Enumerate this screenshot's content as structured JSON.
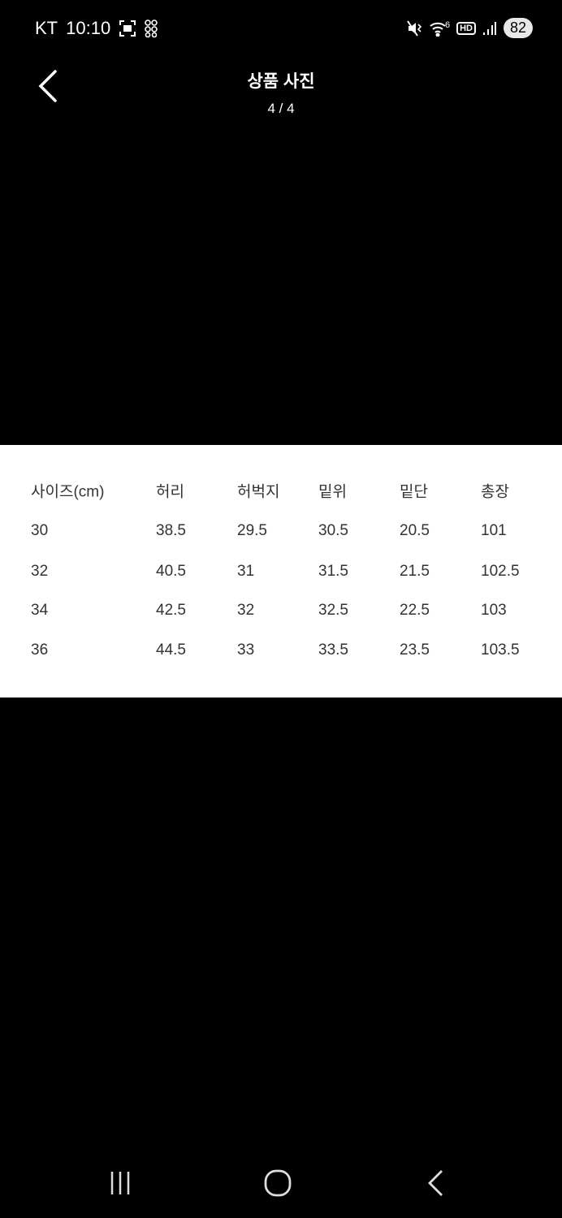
{
  "status_bar": {
    "carrier": "KT",
    "time": "10:10",
    "battery": "82",
    "network": "6",
    "hd": "HD"
  },
  "header": {
    "title": "상품 사진",
    "counter": "4 / 4"
  },
  "size_table": {
    "headers": [
      "사이즈(cm)",
      "허리",
      "허벅지",
      "밑위",
      "밑단",
      "총장"
    ],
    "rows": [
      [
        "30",
        "38.5",
        "29.5",
        "30.5",
        "20.5",
        "101"
      ],
      [
        "32",
        "40.5",
        "31",
        "31.5",
        "21.5",
        "102.5"
      ],
      [
        "34",
        "42.5",
        "32",
        "32.5",
        "22.5",
        "103"
      ],
      [
        "36",
        "44.5",
        "33",
        "33.5",
        "23.5",
        "103.5"
      ]
    ]
  },
  "nav_bar": {
    "icons": [
      "recent-apps-icon",
      "home-icon",
      "back-icon"
    ]
  }
}
